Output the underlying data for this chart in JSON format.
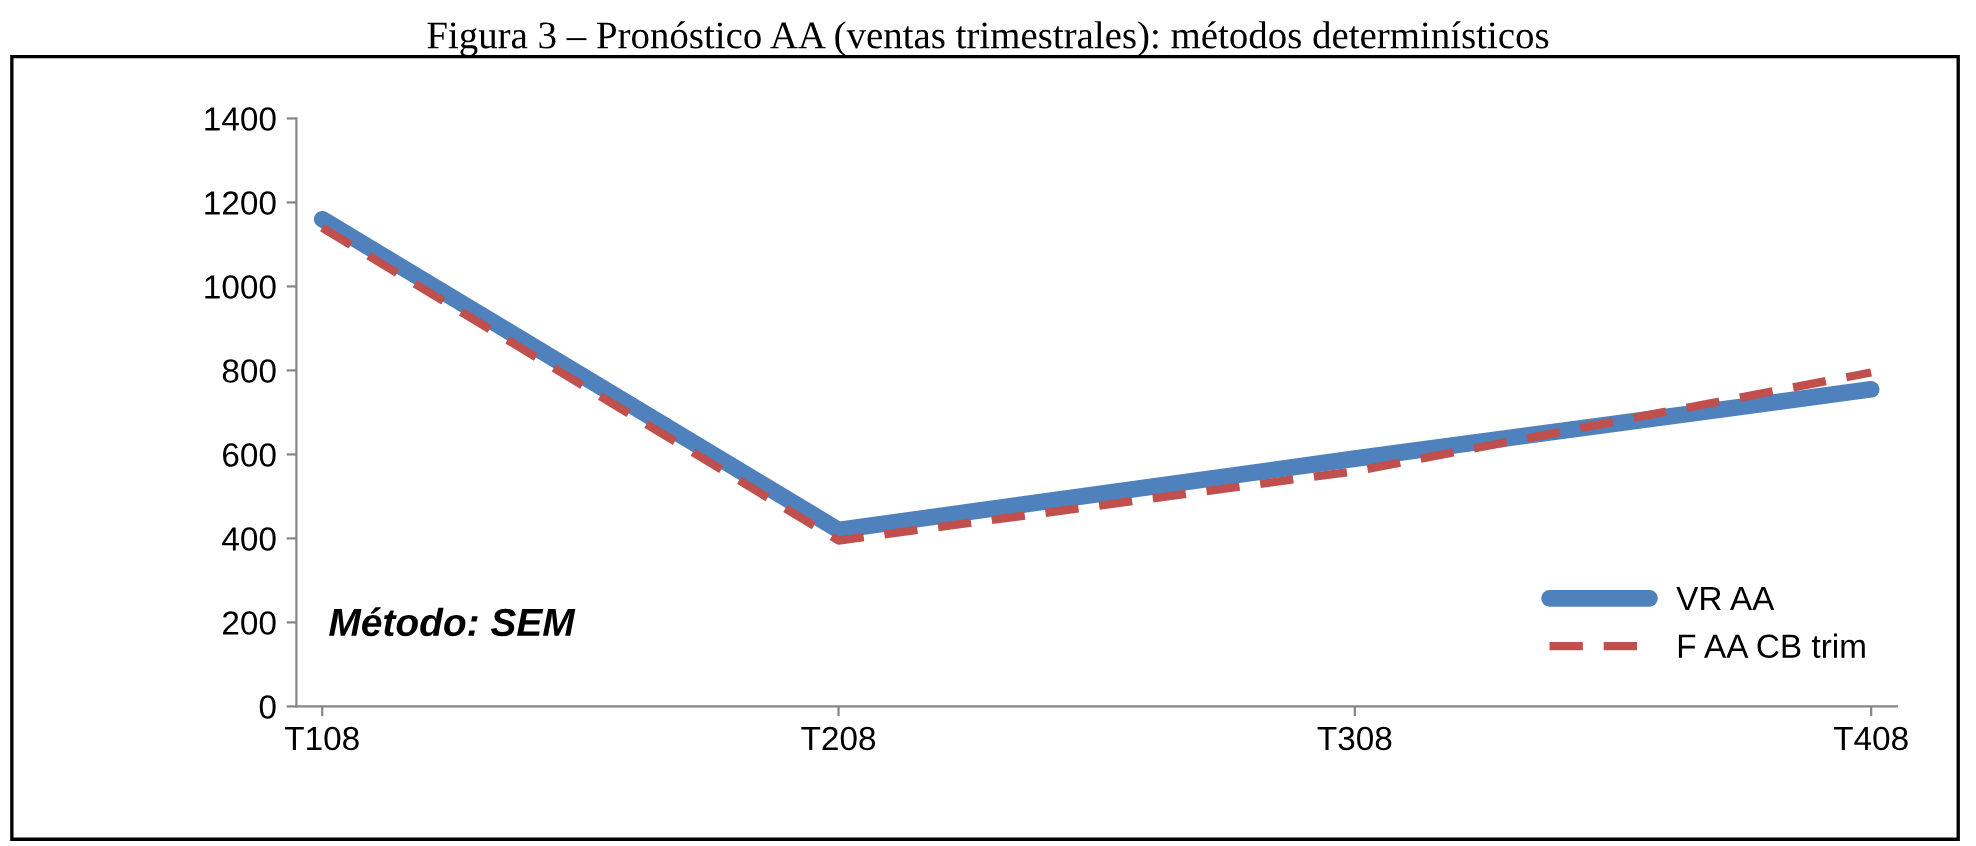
{
  "chart_data": {
    "type": "line",
    "title": "Figura 3 – Pronóstico AA (ventas trimestrales): métodos determinísticos",
    "categories": [
      "T108",
      "T208",
      "T308",
      "T408"
    ],
    "series": [
      {
        "name": "VR AA",
        "color": "#4f81bd",
        "values": [
          1160,
          420,
          590,
          755
        ],
        "line_style": "solid"
      },
      {
        "name": "F AA CB trim",
        "color": "#c0504d",
        "values": [
          1140,
          395,
          560,
          795
        ],
        "line_style": "dashed"
      }
    ],
    "ylim": [
      0,
      1400
    ],
    "yticks": [
      0,
      200,
      400,
      600,
      800,
      1000,
      1200,
      1400
    ],
    "annotations": [
      "Método: SEM"
    ],
    "grid": false,
    "legend": "bottom right",
    "marker": "none"
  }
}
